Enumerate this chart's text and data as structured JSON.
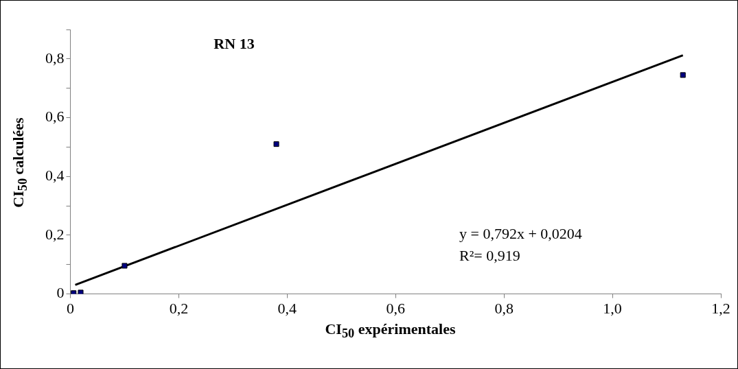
{
  "chart_data": {
    "type": "scatter",
    "title": "RN 13",
    "xlabel": "CI$_{50}$ expérimentales",
    "ylabel": "CI$_{50}$ calculées",
    "annotations": [
      "y = 0,792x + 0,0204",
      "R²= 0,919"
    ],
    "x": [
      0.006,
      0.019,
      0.1,
      0.38,
      1.13
    ],
    "series": [
      {
        "color": "#000080",
        "values": [
          0.003,
          0.005,
          0.096,
          0.51,
          0.745
        ],
        "marker": "square"
      },
      {
        "type": "line",
        "color": "#000000",
        "x": [
          0.009,
          1.13
        ],
        "values": [
          0.031,
          0.812
        ],
        "marker": "none",
        "line_style": "solid"
      }
    ],
    "xlim": [
      0,
      1.2
    ],
    "ylim": [
      0,
      0.9
    ],
    "xticks": [
      0,
      {
        "value": 0.2,
        "label": "0,2"
      },
      {
        "value": 0.4,
        "label": "0,4"
      },
      {
        "value": 0.6,
        "label": "0,6"
      },
      {
        "value": 0.8,
        "label": "0,8"
      },
      {
        "value": 1.0,
        "label": "1,0"
      },
      {
        "value": 1.2,
        "label": "1,2"
      }
    ],
    "yticks": [
      0,
      {
        "value": 0.1,
        "label": null
      },
      {
        "value": 0.2,
        "label": "0,2"
      },
      {
        "value": 0.3,
        "label": null
      },
      {
        "value": 0.4,
        "label": "0,4"
      },
      {
        "value": 0.5,
        "label": null
      },
      {
        "value": 0.6,
        "label": "0,6"
      },
      {
        "value": 0.7,
        "label": null
      },
      {
        "value": 0.8,
        "label": "0,8"
      },
      {
        "value": 0.9,
        "label": null
      }
    ],
    "grid": false,
    "legend": false
  }
}
